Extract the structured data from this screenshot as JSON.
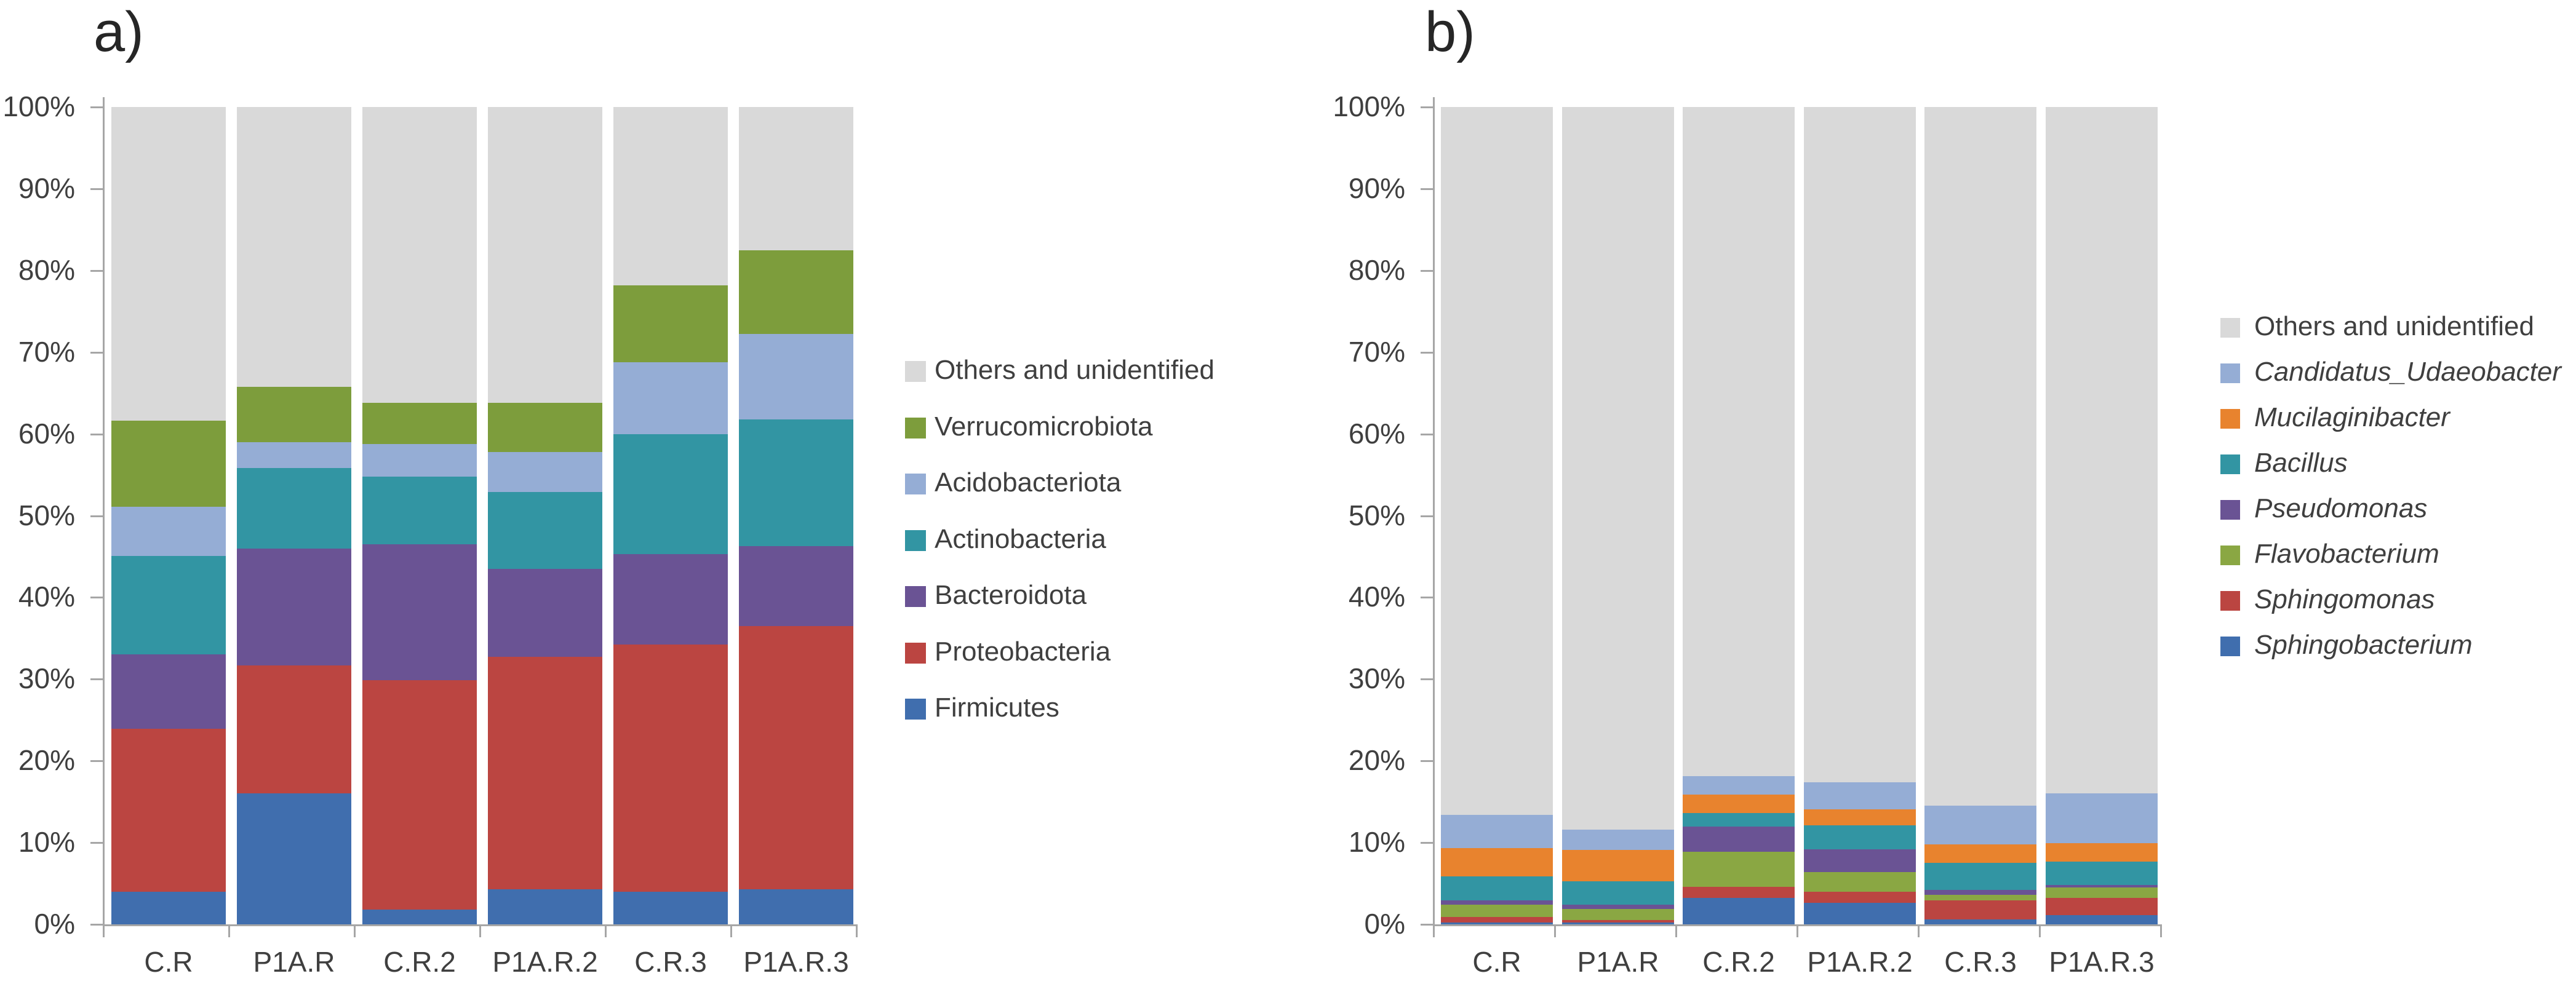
{
  "figure": {
    "background": "#ffffff",
    "text_color": "#3f3f3f",
    "axis_color": "#a6a6a6"
  },
  "chart_data": [
    {
      "id": "a",
      "type": "bar",
      "subtype": "stacked-percent-column",
      "title": "a)",
      "categories": [
        "C.R",
        "P1A.R",
        "C.R.2",
        "P1A.R.2",
        "C.R.3",
        "P1A.R.3"
      ],
      "series": [
        {
          "name": "Firmicutes",
          "color": "#406eae",
          "italic": false,
          "values": [
            4.0,
            16.0,
            1.8,
            4.3,
            4.0,
            4.3
          ]
        },
        {
          "name": "Proteobacteria",
          "color": "#bb4541",
          "italic": false,
          "values": [
            19.9,
            15.7,
            28.1,
            28.4,
            30.2,
            32.2
          ]
        },
        {
          "name": "Bacteroidota",
          "color": "#6a5394",
          "italic": false,
          "values": [
            9.1,
            14.3,
            16.6,
            10.8,
            11.1,
            9.8
          ]
        },
        {
          "name": "Actinobacteria",
          "color": "#3295a3",
          "italic": false,
          "values": [
            12.1,
            9.8,
            8.3,
            9.4,
            14.7,
            15.5
          ]
        },
        {
          "name": "Acidobacteriota",
          "color": "#95add5",
          "italic": false,
          "values": [
            6.0,
            3.2,
            4.0,
            4.9,
            8.8,
            10.4
          ]
        },
        {
          "name": "Verrucomicrobiota",
          "color": "#7d9d3c",
          "italic": false,
          "values": [
            10.5,
            6.8,
            5.0,
            6.0,
            9.4,
            10.3
          ]
        },
        {
          "name": "Others and unidentified",
          "color": "#d9d9d9",
          "italic": false,
          "values": [
            38.4,
            34.2,
            36.2,
            36.2,
            21.8,
            17.5
          ]
        }
      ],
      "y_axis": {
        "min": 0,
        "max": 100,
        "step": 10,
        "grid": false,
        "tick_labels": [
          "0%",
          "10%",
          "20%",
          "30%",
          "40%",
          "50%",
          "60%",
          "70%",
          "80%",
          "90%",
          "100%"
        ]
      },
      "legend_position": "right"
    },
    {
      "id": "b",
      "type": "bar",
      "subtype": "stacked-percent-column",
      "title": "b)",
      "categories": [
        "C.R",
        "P1A.R",
        "C.R.2",
        "P1A.R.2",
        "C.R.3",
        "P1A.R.3"
      ],
      "series": [
        {
          "name": "Sphingobacterium",
          "color": "#406eae",
          "italic": true,
          "values": [
            0.2,
            0.2,
            3.2,
            2.6,
            0.6,
            1.1
          ]
        },
        {
          "name": "Sphingomonas",
          "color": "#bb4541",
          "italic": true,
          "values": [
            0.7,
            0.3,
            1.4,
            1.4,
            2.3,
            2.1
          ]
        },
        {
          "name": "Flavobacterium",
          "color": "#8aa743",
          "italic": true,
          "values": [
            1.5,
            1.4,
            4.3,
            2.4,
            0.7,
            1.3
          ]
        },
        {
          "name": "Pseudomonas",
          "color": "#6a5394",
          "italic": true,
          "values": [
            0.5,
            0.5,
            3.1,
            2.8,
            0.6,
            0.3
          ]
        },
        {
          "name": "Bacillus",
          "color": "#3295a3",
          "italic": true,
          "values": [
            3.0,
            2.9,
            1.6,
            2.9,
            3.3,
            2.9
          ]
        },
        {
          "name": "Mucilaginibacter",
          "color": "#e8832e",
          "italic": true,
          "values": [
            3.4,
            3.8,
            2.3,
            2.0,
            2.3,
            2.2
          ]
        },
        {
          "name": "Candidatus_Udaeobacter",
          "color": "#95add5",
          "italic": true,
          "values": [
            4.1,
            2.5,
            2.2,
            3.3,
            4.7,
            6.1
          ]
        },
        {
          "name": "Others and unidentified",
          "color": "#d9d9d9",
          "italic": false,
          "values": [
            86.6,
            88.4,
            81.9,
            82.6,
            85.5,
            84.0
          ]
        }
      ],
      "y_axis": {
        "min": 0,
        "max": 100,
        "step": 10,
        "grid": false,
        "tick_labels": [
          "0%",
          "10%",
          "20%",
          "30%",
          "40%",
          "50%",
          "60%",
          "70%",
          "80%",
          "90%",
          "100%"
        ]
      },
      "legend_position": "right"
    }
  ]
}
